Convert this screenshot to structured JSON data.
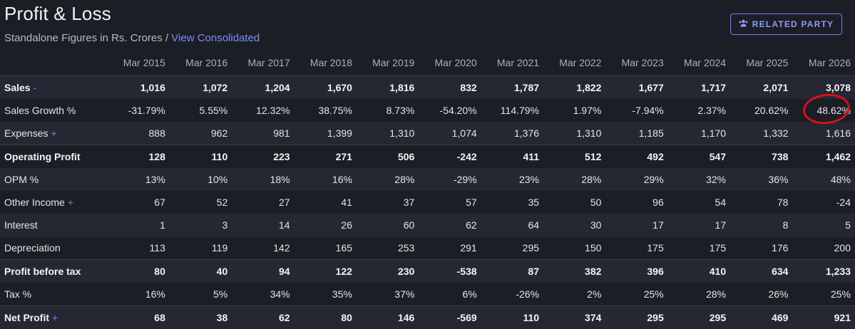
{
  "header": {
    "title": "Profit & Loss",
    "subtitle_prefix": "Standalone Figures in Rs. Crores /",
    "subtitle_link": "View Consolidated",
    "related_party_button": "RELATED PARTY",
    "accent_color": "#6f7ef0"
  },
  "table": {
    "columns": [
      "Mar 2015",
      "Mar 2016",
      "Mar 2017",
      "Mar 2018",
      "Mar 2019",
      "Mar 2020",
      "Mar 2021",
      "Mar 2022",
      "Mar 2023",
      "Mar 2024",
      "Mar 2025",
      "Mar 2026"
    ],
    "rows": [
      {
        "label": "Sales",
        "toggle": "-",
        "bold": true,
        "alt": true,
        "sep": false,
        "values": [
          "1,016",
          "1,072",
          "1,204",
          "1,670",
          "1,816",
          "832",
          "1,787",
          "1,822",
          "1,677",
          "1,717",
          "2,071",
          "3,078"
        ]
      },
      {
        "label": "Sales Growth %",
        "toggle": "",
        "bold": false,
        "alt": false,
        "sep": false,
        "values": [
          "-31.79%",
          "5.55%",
          "12.32%",
          "38.75%",
          "8.73%",
          "-54.20%",
          "114.79%",
          "1.97%",
          "-7.94%",
          "2.37%",
          "20.62%",
          "48.62%"
        ]
      },
      {
        "label": "Expenses",
        "toggle": "+",
        "bold": false,
        "alt": true,
        "sep": false,
        "values": [
          "888",
          "962",
          "981",
          "1,399",
          "1,310",
          "1,074",
          "1,376",
          "1,310",
          "1,185",
          "1,170",
          "1,332",
          "1,616"
        ]
      },
      {
        "label": "Operating Profit",
        "toggle": "",
        "bold": true,
        "alt": false,
        "sep": true,
        "values": [
          "128",
          "110",
          "223",
          "271",
          "506",
          "-242",
          "411",
          "512",
          "492",
          "547",
          "738",
          "1,462"
        ]
      },
      {
        "label": "OPM %",
        "toggle": "",
        "bold": false,
        "alt": true,
        "sep": false,
        "values": [
          "13%",
          "10%",
          "18%",
          "16%",
          "28%",
          "-29%",
          "23%",
          "28%",
          "29%",
          "32%",
          "36%",
          "48%"
        ]
      },
      {
        "label": "Other Income",
        "toggle": "+",
        "bold": false,
        "alt": false,
        "sep": false,
        "values": [
          "67",
          "52",
          "27",
          "41",
          "37",
          "57",
          "35",
          "50",
          "96",
          "54",
          "78",
          "-24"
        ]
      },
      {
        "label": "Interest",
        "toggle": "",
        "bold": false,
        "alt": true,
        "sep": false,
        "values": [
          "1",
          "3",
          "14",
          "26",
          "60",
          "62",
          "64",
          "30",
          "17",
          "17",
          "8",
          "5"
        ]
      },
      {
        "label": "Depreciation",
        "toggle": "",
        "bold": false,
        "alt": false,
        "sep": false,
        "values": [
          "113",
          "119",
          "142",
          "165",
          "253",
          "291",
          "295",
          "150",
          "175",
          "175",
          "176",
          "200"
        ]
      },
      {
        "label": "Profit before tax",
        "toggle": "",
        "bold": true,
        "alt": true,
        "sep": true,
        "values": [
          "80",
          "40",
          "94",
          "122",
          "230",
          "-538",
          "87",
          "382",
          "396",
          "410",
          "634",
          "1,233"
        ]
      },
      {
        "label": "Tax %",
        "toggle": "",
        "bold": false,
        "alt": false,
        "sep": false,
        "values": [
          "16%",
          "5%",
          "34%",
          "35%",
          "37%",
          "6%",
          "-26%",
          "2%",
          "25%",
          "28%",
          "26%",
          "25%"
        ]
      },
      {
        "label": "Net Profit",
        "toggle": "+",
        "bold": true,
        "alt": true,
        "sep": true,
        "values": [
          "68",
          "38",
          "62",
          "80",
          "146",
          "-569",
          "110",
          "374",
          "295",
          "295",
          "469",
          "921"
        ]
      }
    ]
  },
  "annotation": {
    "type": "red-circle",
    "target": "Sales Growth % Mar 2026",
    "color": "#d8101b"
  }
}
